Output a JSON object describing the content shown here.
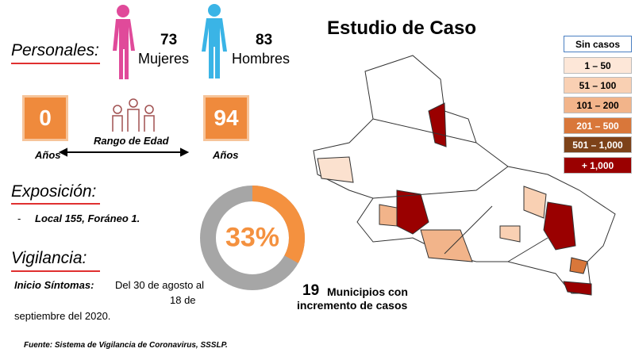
{
  "header": {
    "title": "Estudio de Caso"
  },
  "personales": {
    "label": "Personales:",
    "women_count": "73",
    "women_label": "Mujeres",
    "men_count": "83",
    "men_label": "Hombres"
  },
  "age": {
    "min": "0",
    "min_unit": "Años",
    "range_label": "Rango de Edad",
    "max": "94",
    "max_unit": "Años"
  },
  "exposicion": {
    "label": "Exposición:",
    "bullet": "-",
    "text": "Local 155, Foráneo 1."
  },
  "donut": {
    "value": 33,
    "label": "33%",
    "color": "#f4913f",
    "rest_color": "#a6a6a6"
  },
  "vigilancia": {
    "label": "Vigilancia:",
    "onset_label": "Inicio Síntomas:",
    "lines": [
      "Del 30 de agosto al",
      "18 de",
      "septiembre del 2020."
    ]
  },
  "municipios": {
    "count": "19",
    "lines": [
      "Municipios con",
      "incremento de casos"
    ]
  },
  "legend": [
    {
      "label": "Sin casos",
      "color": "#ffffff"
    },
    {
      "label": "1 – 50",
      "color": "#fde7d8"
    },
    {
      "label": "51 – 100",
      "color": "#f9d0b3"
    },
    {
      "label": "101 – 200",
      "color": "#f2b48a"
    },
    {
      "label": "201 – 500",
      "color": "#d9773a"
    },
    {
      "label": "501 – 1,000",
      "color": "#7d4219"
    },
    {
      "label": "+ 1,000",
      "color": "#9a0000"
    }
  ],
  "footer": {
    "source": "Fuente: Sistema de Vigilancia de Coronavirus, SSSLP."
  }
}
